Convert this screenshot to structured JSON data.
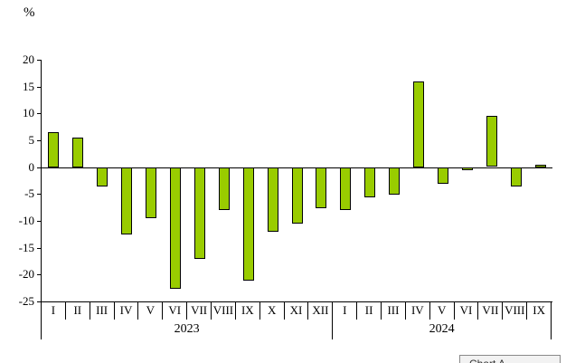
{
  "chart": {
    "unit_label": "%",
    "tab_label": "Chart A"
  },
  "chart_data": {
    "type": "bar",
    "title": "",
    "ylabel": "%",
    "xlabel": "",
    "ylim": [
      -25,
      20
    ],
    "yticks": [
      20,
      15,
      10,
      5,
      0,
      -5,
      -10,
      -15,
      -20,
      -25
    ],
    "grid": false,
    "legend": false,
    "categories": [
      "I",
      "II",
      "III",
      "IV",
      "V",
      "VI",
      "VII",
      "VIII",
      "IX",
      "X",
      "XI",
      "XII",
      "I",
      "II",
      "III",
      "IV",
      "V",
      "VI",
      "VII",
      "VIII",
      "IX"
    ],
    "values": [
      6.5,
      5.5,
      -3.5,
      -12.5,
      -9.5,
      -22.5,
      -17,
      -8,
      -21,
      -12,
      -10.5,
      -7.5,
      -8,
      -5.5,
      -5,
      16,
      -3,
      -0.5,
      9.5,
      -3.5,
      0.5
    ],
    "groups": [
      {
        "label": "2023",
        "count": 12
      },
      {
        "label": "2024",
        "count": 9
      }
    ],
    "bar_color": "#99CC00",
    "bar_border_color": "#000000",
    "axis_color": "#000000"
  }
}
